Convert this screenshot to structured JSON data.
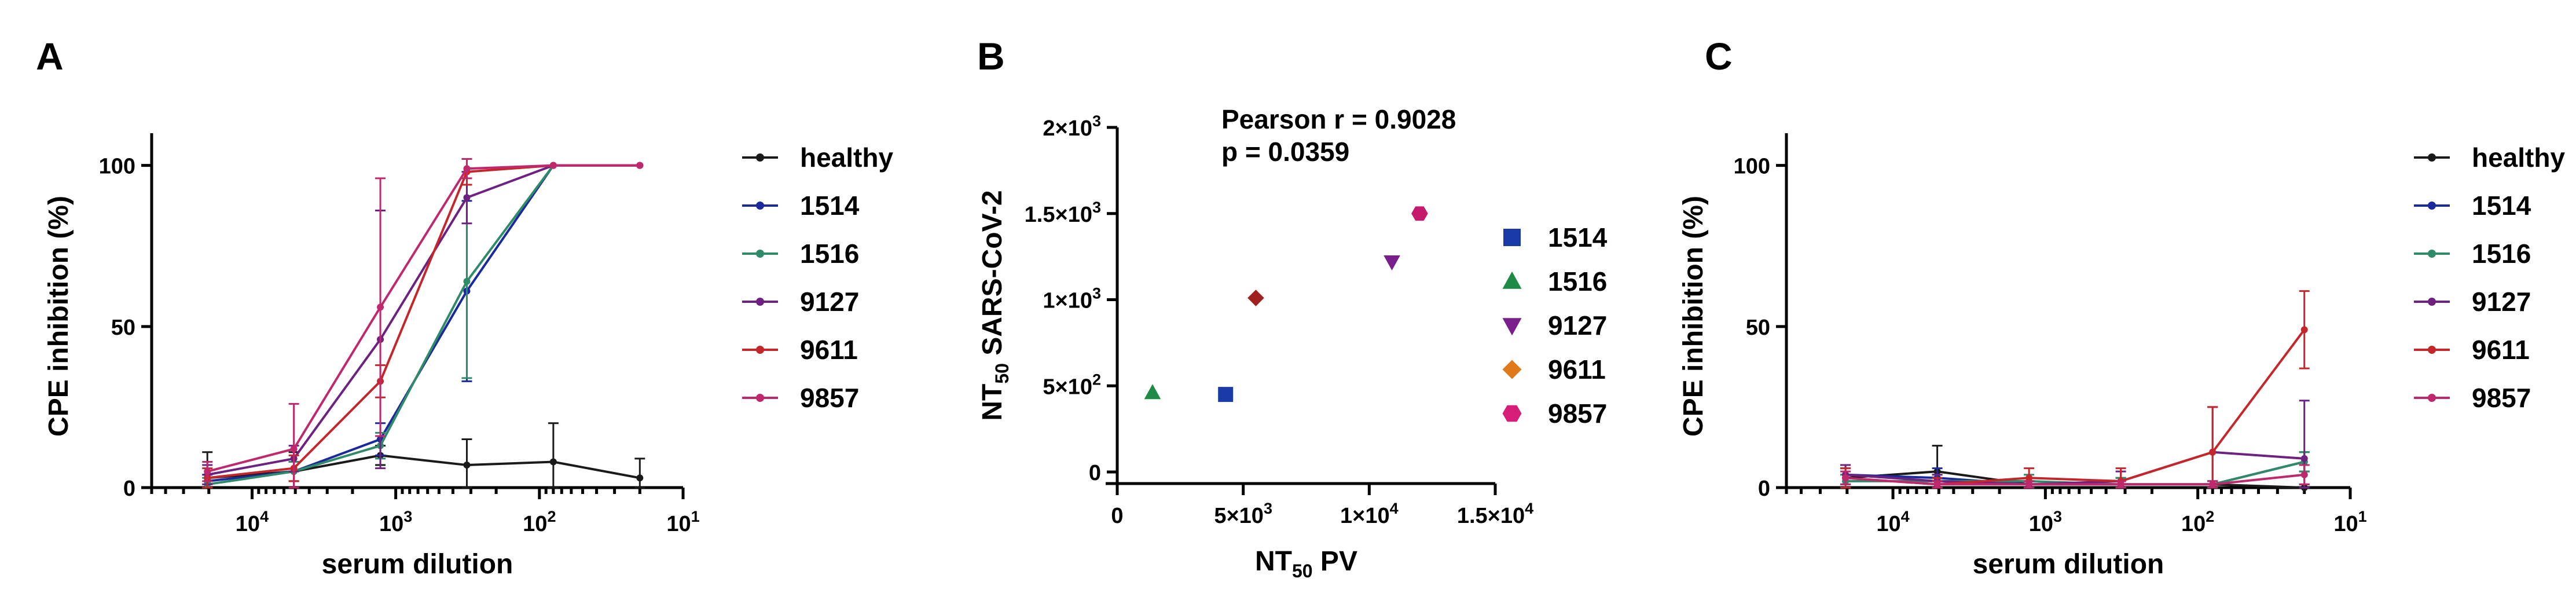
{
  "figure": {
    "panel_labels": [
      "A",
      "B",
      "C"
    ],
    "colors": {
      "healthy": "#1a1a1a",
      "1514": "#1a2a9c",
      "1516": "#2f8a68",
      "9127": "#6d2180",
      "9611": "#c4262a",
      "9857": "#c0286e"
    }
  },
  "chart_data": [
    {
      "panel": "A",
      "type": "line",
      "xscale": "log-reversed",
      "xlabel": "serum dilution",
      "ylabel": "CPE inhibition (%)",
      "xlim": [
        50000,
        10
      ],
      "ylim": [
        0,
        110
      ],
      "xticks": [
        {
          "value": 10000,
          "base": "10",
          "exp": "4"
        },
        {
          "value": 1000,
          "base": "10",
          "exp": "3"
        },
        {
          "value": 100,
          "base": "10",
          "exp": "2"
        },
        {
          "value": 10,
          "base": "10",
          "exp": "1"
        }
      ],
      "yticks": [
        "0",
        "50",
        "100"
      ],
      "x": [
        20480,
        5120,
        1280,
        320,
        80,
        20
      ],
      "series": [
        {
          "name": "healthy",
          "values": [
            3,
            5,
            10,
            7,
            8,
            3
          ],
          "errors": [
            8,
            6,
            3,
            8,
            12,
            6
          ]
        },
        {
          "name": "1514",
          "values": [
            2,
            5,
            15,
            61,
            100,
            100
          ],
          "errors": [
            2,
            3,
            5,
            28,
            0,
            0
          ]
        },
        {
          "name": "1516",
          "values": [
            1,
            5,
            13,
            64,
            100,
            100
          ],
          "errors": [
            2,
            3,
            4,
            30,
            0,
            0
          ]
        },
        {
          "name": "9127",
          "values": [
            4,
            9,
            46,
            90,
            100,
            100
          ],
          "errors": [
            3,
            4,
            40,
            8,
            0,
            0
          ]
        },
        {
          "name": "9611",
          "values": [
            3,
            6,
            33,
            98,
            100,
            100
          ],
          "errors": [
            3,
            4,
            5,
            4,
            0,
            0
          ]
        },
        {
          "name": "9857",
          "values": [
            5,
            12,
            56,
            99,
            100,
            100
          ],
          "errors": [
            3,
            14,
            40,
            3,
            0,
            0
          ]
        }
      ],
      "legend": [
        "healthy",
        "1514",
        "1516",
        "9127",
        "9611",
        "9857"
      ]
    },
    {
      "panel": "B",
      "type": "scatter",
      "xlabel": {
        "base": "NT",
        "sub": "50",
        "rest": " PV"
      },
      "ylabel": {
        "base": "NT",
        "sub": "50",
        "rest": " SARS-CoV-2"
      },
      "xlim": [
        0,
        15000
      ],
      "ylim": [
        0,
        2000
      ],
      "xticks": [
        {
          "value": 0,
          "label": "0",
          "exp": ""
        },
        {
          "value": 5000,
          "label": "5×10",
          "exp": "3"
        },
        {
          "value": 10000,
          "label": "1×10",
          "exp": "4"
        },
        {
          "value": 15000,
          "label": "1.5×10",
          "exp": "4"
        }
      ],
      "yticks": [
        {
          "value": 0,
          "label": "0",
          "exp": ""
        },
        {
          "value": 500,
          "label": "5×10",
          "exp": "2"
        },
        {
          "value": 1000,
          "label": "1×10",
          "exp": "3"
        },
        {
          "value": 1500,
          "label": "1.5×10",
          "exp": "3"
        },
        {
          "value": 2000,
          "label": "2×10",
          "exp": "3"
        }
      ],
      "points": [
        {
          "name": "1514",
          "x": 4300,
          "y": 450,
          "color": "#1a3aa8",
          "marker": "square"
        },
        {
          "name": "1516",
          "x": 1400,
          "y": 460,
          "color": "#1f8a45",
          "marker": "triangle-up"
        },
        {
          "name": "9127",
          "x": 10900,
          "y": 1220,
          "color": "#7a1e8c",
          "marker": "triangle-down"
        },
        {
          "name": "9611",
          "x": 5500,
          "y": 1010,
          "color": "#a02020",
          "marker": "diamond"
        },
        {
          "name": "9857",
          "x": 12000,
          "y": 1500,
          "color": "#c61a6e",
          "marker": "hexagon"
        }
      ],
      "legend_colors": {
        "1514": "#1a3aa8",
        "1516": "#1f8a45",
        "9127": "#7a1e8c",
        "9611": "#e07a18",
        "9857": "#d61e78"
      },
      "annotations": [
        "Pearson r = 0.9028",
        "p = 0.0359"
      ]
    },
    {
      "panel": "C",
      "type": "line",
      "xscale": "log-reversed",
      "xlabel": "serum dilution",
      "ylabel": "CPE inhibition (%)",
      "xlim": [
        50000,
        10
      ],
      "ylim": [
        0,
        110
      ],
      "xticks": [
        {
          "value": 10000,
          "base": "10",
          "exp": "4"
        },
        {
          "value": 1000,
          "base": "10",
          "exp": "3"
        },
        {
          "value": 100,
          "base": "10",
          "exp": "2"
        },
        {
          "value": 10,
          "base": "10",
          "exp": "1"
        }
      ],
      "yticks": [
        "0",
        "50",
        "100"
      ],
      "x": [
        20480,
        5120,
        1280,
        320,
        80,
        20
      ],
      "series": [
        {
          "name": "healthy",
          "values": [
            3,
            5,
            1,
            1,
            1,
            0
          ],
          "errors": [
            3,
            8,
            1,
            1,
            1,
            1
          ]
        },
        {
          "name": "1514",
          "values": [
            4,
            3,
            1,
            1,
            1,
            8
          ],
          "errors": [
            3,
            3,
            1,
            2,
            1,
            3
          ]
        },
        {
          "name": "1516",
          "values": [
            2,
            2,
            2,
            1,
            1,
            8
          ],
          "errors": [
            2,
            2,
            2,
            2,
            1,
            3
          ]
        },
        {
          "name": "9127",
          "values": [
            4,
            2,
            1,
            2,
            11,
            9
          ],
          "errors": [
            3,
            2,
            2,
            3,
            14,
            18
          ]
        },
        {
          "name": "9611",
          "values": [
            3,
            1,
            3,
            2,
            11,
            49
          ],
          "errors": [
            3,
            2,
            3,
            4,
            14,
            12
          ]
        },
        {
          "name": "9857",
          "values": [
            3,
            1,
            1,
            1,
            1,
            4
          ],
          "errors": [
            2,
            1,
            1,
            1,
            1,
            3
          ]
        }
      ],
      "legend": [
        "healthy",
        "1514",
        "1516",
        "9127",
        "9611",
        "9857"
      ]
    }
  ]
}
